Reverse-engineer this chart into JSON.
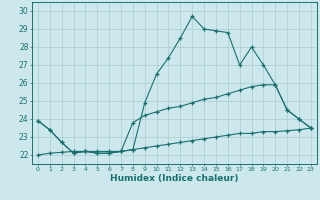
{
  "xlabel": "Humidex (Indice chaleur)",
  "background_color": "#cce8ec",
  "grid_color": "#aaccd0",
  "line_color": "#1a7070",
  "xlim": [
    -0.5,
    23.5
  ],
  "ylim": [
    21.5,
    30.5
  ],
  "xticks": [
    0,
    1,
    2,
    3,
    4,
    5,
    6,
    7,
    8,
    9,
    10,
    11,
    12,
    13,
    14,
    15,
    16,
    17,
    18,
    19,
    20,
    21,
    22,
    23
  ],
  "yticks": [
    22,
    23,
    24,
    25,
    26,
    27,
    28,
    29,
    30
  ],
  "line1_x": [
    0,
    1,
    2,
    3,
    4,
    5,
    6,
    7,
    8,
    9,
    10,
    11,
    12,
    13,
    14,
    15,
    16,
    17,
    18,
    19,
    20,
    21,
    22,
    23
  ],
  "line1_y": [
    23.9,
    23.4,
    22.7,
    22.1,
    22.2,
    22.1,
    22.1,
    22.2,
    22.3,
    24.9,
    26.5,
    27.4,
    28.5,
    29.7,
    29.0,
    28.9,
    28.8,
    27.0,
    28.0,
    27.0,
    25.9,
    24.5,
    24.0,
    23.5
  ],
  "line2_x": [
    0,
    1,
    2,
    3,
    4,
    5,
    6,
    7,
    8,
    9,
    10,
    11,
    12,
    13,
    14,
    15,
    16,
    17,
    18,
    19,
    20,
    21,
    22,
    23
  ],
  "line2_y": [
    23.9,
    23.4,
    22.7,
    22.1,
    22.2,
    22.1,
    22.1,
    22.2,
    23.8,
    24.2,
    24.4,
    24.6,
    24.7,
    24.9,
    25.1,
    25.2,
    25.4,
    25.6,
    25.8,
    25.9,
    25.9,
    24.5,
    24.0,
    23.5
  ],
  "line3_x": [
    0,
    1,
    2,
    3,
    4,
    5,
    6,
    7,
    8,
    9,
    10,
    11,
    12,
    13,
    14,
    15,
    16,
    17,
    18,
    19,
    20,
    21,
    22,
    23
  ],
  "line3_y": [
    22.0,
    22.1,
    22.15,
    22.2,
    22.2,
    22.2,
    22.2,
    22.2,
    22.3,
    22.4,
    22.5,
    22.6,
    22.7,
    22.8,
    22.9,
    23.0,
    23.1,
    23.2,
    23.2,
    23.3,
    23.3,
    23.35,
    23.4,
    23.5
  ]
}
